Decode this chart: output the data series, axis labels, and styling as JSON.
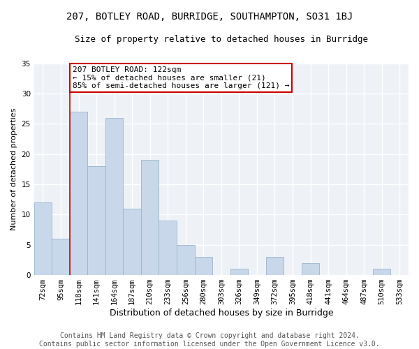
{
  "title1": "207, BOTLEY ROAD, BURRIDGE, SOUTHAMPTON, SO31 1BJ",
  "title2": "Size of property relative to detached houses in Burridge",
  "xlabel": "Distribution of detached houses by size in Burridge",
  "ylabel": "Number of detached properties",
  "categories": [
    "72sqm",
    "95sqm",
    "118sqm",
    "141sqm",
    "164sqm",
    "187sqm",
    "210sqm",
    "233sqm",
    "256sqm",
    "280sqm",
    "303sqm",
    "326sqm",
    "349sqm",
    "372sqm",
    "395sqm",
    "418sqm",
    "441sqm",
    "464sqm",
    "487sqm",
    "510sqm",
    "533sqm"
  ],
  "values": [
    12,
    6,
    27,
    18,
    26,
    11,
    19,
    9,
    5,
    3,
    0,
    1,
    0,
    3,
    0,
    2,
    0,
    0,
    0,
    1,
    0
  ],
  "bar_color": "#c8d8ea",
  "bar_edgecolor": "#9ab4cc",
  "vline_index": 2,
  "annotation_text": "207 BOTLEY ROAD: 122sqm\n← 15% of detached houses are smaller (21)\n85% of semi-detached houses are larger (121) →",
  "annotation_box_facecolor": "white",
  "annotation_box_edgecolor": "#cc0000",
  "ylim": [
    0,
    35
  ],
  "yticks": [
    0,
    5,
    10,
    15,
    20,
    25,
    30,
    35
  ],
  "background_color": "#eef2f7",
  "grid_color": "white",
  "footer": "Contains HM Land Registry data © Crown copyright and database right 2024.\nContains public sector information licensed under the Open Government Licence v3.0.",
  "title1_fontsize": 10,
  "title2_fontsize": 9,
  "xlabel_fontsize": 9,
  "ylabel_fontsize": 8,
  "annotation_fontsize": 8,
  "footer_fontsize": 7,
  "tick_fontsize": 7.5
}
